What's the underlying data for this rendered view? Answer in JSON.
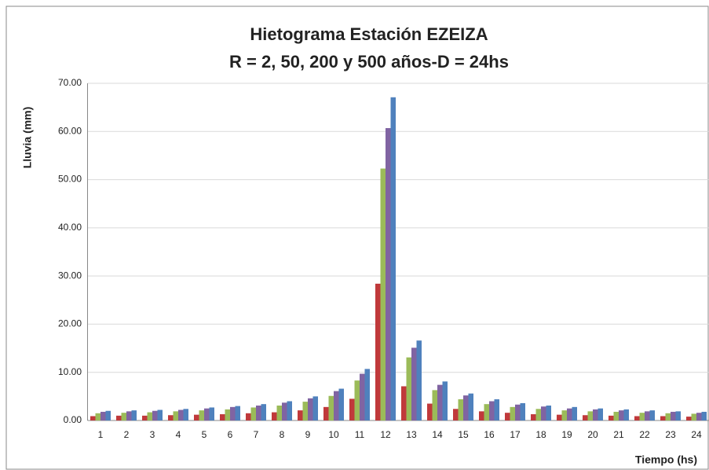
{
  "chart_data": {
    "type": "bar",
    "title": "Hietograma Estación EZEIZA",
    "subtitle": "R = 2, 50, 200 y 500 años-D = 24hs",
    "y_label": "Lluvia (mm)",
    "x_label": "Tiempo (hs)",
    "categories": [
      "1",
      "2",
      "3",
      "4",
      "5",
      "6",
      "7",
      "8",
      "9",
      "10",
      "11",
      "12",
      "13",
      "14",
      "15",
      "16",
      "17",
      "18",
      "19",
      "20",
      "21",
      "22",
      "23",
      "24"
    ],
    "series": [
      {
        "color": "#c0393b",
        "values": [
          0.9,
          1.0,
          1.0,
          1.1,
          1.2,
          1.3,
          1.5,
          1.7,
          2.1,
          2.8,
          4.5,
          28.4,
          7.1,
          3.5,
          2.4,
          1.9,
          1.6,
          1.3,
          1.2,
          1.1,
          1.0,
          0.9,
          0.9,
          0.8
        ]
      },
      {
        "color": "#9bbb59",
        "values": [
          1.5,
          1.6,
          1.7,
          1.9,
          2.1,
          2.3,
          2.7,
          3.1,
          3.9,
          5.1,
          8.3,
          52.3,
          13.1,
          6.3,
          4.4,
          3.4,
          2.8,
          2.4,
          2.1,
          1.9,
          1.8,
          1.6,
          1.5,
          1.4
        ]
      },
      {
        "color": "#8064a2",
        "values": [
          1.8,
          1.9,
          2.0,
          2.2,
          2.5,
          2.8,
          3.1,
          3.7,
          4.6,
          6.1,
          9.7,
          60.7,
          15.1,
          7.4,
          5.2,
          4.0,
          3.3,
          2.9,
          2.5,
          2.3,
          2.1,
          1.9,
          1.8,
          1.6
        ]
      },
      {
        "color": "#4f81bd",
        "values": [
          2.0,
          2.1,
          2.2,
          2.4,
          2.7,
          3.0,
          3.4,
          4.0,
          5.0,
          6.6,
          10.7,
          67.1,
          16.6,
          8.1,
          5.6,
          4.4,
          3.6,
          3.1,
          2.8,
          2.5,
          2.3,
          2.1,
          1.9,
          1.8
        ]
      }
    ],
    "ylim": [
      0,
      70
    ],
    "yticks": [
      {
        "value": 0,
        "label": "0.00"
      },
      {
        "value": 10,
        "label": "10.00"
      },
      {
        "value": 20,
        "label": "20.00"
      },
      {
        "value": 30,
        "label": "30.00"
      },
      {
        "value": 40,
        "label": "40.00"
      },
      {
        "value": 50,
        "label": "50.00"
      },
      {
        "value": 60,
        "label": "60.00"
      },
      {
        "value": 70,
        "label": "70.00"
      }
    ],
    "grid": true
  }
}
